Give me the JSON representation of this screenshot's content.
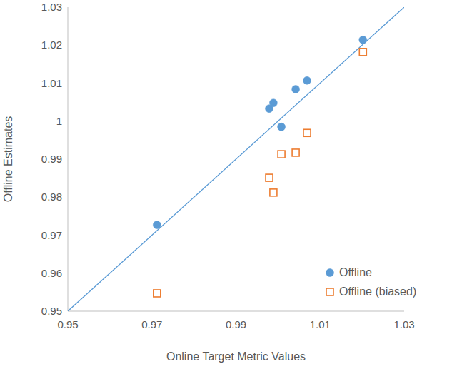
{
  "chart_data": {
    "type": "scatter",
    "x_label": "Online Target Metric Values",
    "y_label": "Offline Estimates",
    "x": [
      0.9712,
      0.9979,
      0.9989,
      1.0008,
      1.0042,
      1.0069,
      1.0202
    ],
    "series": [
      {
        "name": "Offline",
        "color": "#5b9bd5",
        "marker": "circle",
        "values": [
          0.9727,
          1.0033,
          1.0048,
          0.9985,
          1.0084,
          1.0107,
          1.0214
        ]
      },
      {
        "name": "Offline (biased)",
        "color": "#ed7d31",
        "marker": "square",
        "values": [
          0.9547,
          0.9851,
          0.9812,
          0.9913,
          0.9917,
          0.9969,
          1.0182
        ]
      }
    ],
    "xlim": [
      0.95,
      1.03
    ],
    "ylim": [
      0.95,
      1.03
    ],
    "xticks": [
      0.95,
      0.97,
      0.99,
      1.01,
      1.03
    ],
    "yticks": [
      0.95,
      0.96,
      0.97,
      0.98,
      0.99,
      1,
      1.01,
      1.02,
      1.03
    ],
    "legend": "lower right",
    "grid": false
  }
}
